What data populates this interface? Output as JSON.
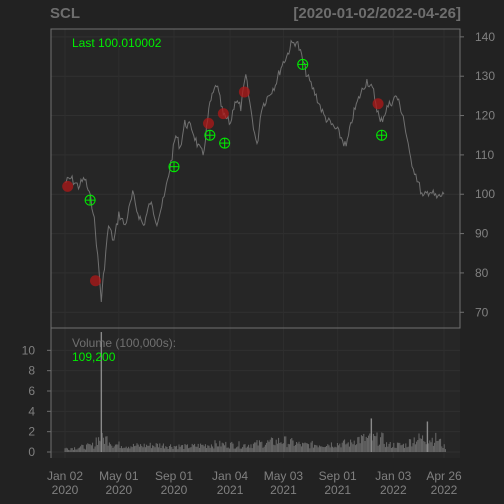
{
  "chart": {
    "symbol": "SCL",
    "date_range": "[2020-01-02/2022-04-26]",
    "last_label": "Last 100.010002",
    "volume_label": "Volume (100,000s):",
    "volume_value": "109,200"
  },
  "colors": {
    "background": "#222222",
    "panel": "#262626",
    "price_line": "#707070",
    "volume_bars": "#6b6b6b",
    "accent_green": "#00ee00",
    "marker_red": "#b01818",
    "axis_text": "#808080",
    "border": "#707070"
  },
  "chart_data": {
    "type": "line",
    "series": [
      {
        "points": [
          [
            "2020-01-02",
            103
          ],
          [
            "2020-01-15",
            104
          ],
          [
            "2020-02-01",
            102
          ],
          [
            "2020-02-15",
            104
          ],
          [
            "2020-02-25",
            100
          ],
          [
            "2020-03-05",
            96
          ],
          [
            "2020-03-12",
            88
          ],
          [
            "2020-03-18",
            80
          ],
          [
            "2020-03-23",
            73
          ],
          [
            "2020-03-30",
            82
          ],
          [
            "2020-04-08",
            92
          ],
          [
            "2020-04-20",
            88
          ],
          [
            "2020-05-01",
            95
          ],
          [
            "2020-05-15",
            92
          ],
          [
            "2020-06-01",
            100
          ],
          [
            "2020-06-10",
            96
          ],
          [
            "2020-06-25",
            92
          ],
          [
            "2020-07-10",
            98
          ],
          [
            "2020-07-25",
            93
          ],
          [
            "2020-08-10",
            99
          ],
          [
            "2020-08-25",
            108
          ],
          [
            "2020-09-05",
            115
          ],
          [
            "2020-09-15",
            112
          ],
          [
            "2020-09-25",
            118
          ],
          [
            "2020-10-10",
            117
          ],
          [
            "2020-10-25",
            112
          ],
          [
            "2020-11-05",
            110
          ],
          [
            "2020-11-20",
            123
          ],
          [
            "2020-12-05",
            128
          ],
          [
            "2020-12-20",
            120
          ],
          [
            "2021-01-05",
            118
          ],
          [
            "2021-01-15",
            124
          ],
          [
            "2021-01-28",
            122
          ],
          [
            "2021-02-08",
            130
          ],
          [
            "2021-02-20",
            121
          ],
          [
            "2021-03-05",
            112
          ],
          [
            "2021-03-15",
            122
          ],
          [
            "2021-03-30",
            125
          ],
          [
            "2021-04-15",
            128
          ],
          [
            "2021-04-30",
            133
          ],
          [
            "2021-05-10",
            135
          ],
          [
            "2021-05-20",
            138
          ],
          [
            "2021-06-01",
            139
          ],
          [
            "2021-06-10",
            136
          ],
          [
            "2021-06-25",
            130
          ],
          [
            "2021-07-15",
            125
          ],
          [
            "2021-08-01",
            120
          ],
          [
            "2021-08-15",
            118
          ],
          [
            "2021-09-01",
            116
          ],
          [
            "2021-09-20",
            112
          ],
          [
            "2021-10-05",
            120
          ],
          [
            "2021-10-20",
            125
          ],
          [
            "2021-11-05",
            129
          ],
          [
            "2021-11-20",
            126
          ],
          [
            "2021-12-05",
            118
          ],
          [
            "2021-12-20",
            122
          ],
          [
            "2022-01-10",
            125
          ],
          [
            "2022-01-25",
            120
          ],
          [
            "2022-02-08",
            110
          ],
          [
            "2022-02-25",
            104
          ],
          [
            "2022-03-10",
            99
          ],
          [
            "2022-03-25",
            101
          ],
          [
            "2022-04-10",
            99
          ],
          [
            "2022-04-26",
            100.01
          ]
        ]
      }
    ],
    "green_markers": [
      [
        "2020-02-27",
        98.5
      ],
      [
        "2020-09-01",
        107
      ],
      [
        "2020-11-20",
        115
      ],
      [
        "2020-12-23",
        113
      ],
      [
        "2021-06-15",
        133
      ],
      [
        "2021-12-08",
        115
      ]
    ],
    "red_markers": [
      [
        "2020-01-08",
        102
      ],
      [
        "2020-03-10",
        78
      ],
      [
        "2020-11-17",
        118
      ],
      [
        "2020-12-20",
        120.5
      ],
      [
        "2021-02-05",
        126
      ],
      [
        "2021-11-30",
        123
      ]
    ],
    "volume": [
      [
        "2020-01-02",
        0.4
      ],
      [
        "2020-02-15",
        0.6
      ],
      [
        "2020-03-10",
        0.8
      ],
      [
        "2020-03-23",
        11.8
      ],
      [
        "2020-04-15",
        0.9
      ],
      [
        "2020-06-01",
        0.7
      ],
      [
        "2020-08-01",
        0.8
      ],
      [
        "2020-10-01",
        0.6
      ],
      [
        "2020-12-01",
        0.9
      ],
      [
        "2021-02-01",
        0.8
      ],
      [
        "2021-03-20",
        1.0
      ],
      [
        "2021-05-01",
        1.3
      ],
      [
        "2021-06-15",
        0.8
      ],
      [
        "2021-08-01",
        0.9
      ],
      [
        "2021-10-01",
        1.0
      ],
      [
        "2021-11-15",
        3.3
      ],
      [
        "2021-12-20",
        0.8
      ],
      [
        "2022-02-01",
        0.8
      ],
      [
        "2022-03-20",
        3.0
      ],
      [
        "2022-04-26",
        0.6
      ]
    ],
    "price_ticks": [
      140,
      130,
      120,
      110,
      100,
      90,
      80,
      70
    ],
    "price_ylim": [
      66,
      142
    ],
    "volume_ticks": [
      10,
      8,
      6,
      4,
      2,
      0
    ],
    "volume_ylim": [
      0,
      12
    ],
    "x_ticks": [
      {
        "date": "2020-01-02",
        "label1": "Jan 02",
        "label2": "2020"
      },
      {
        "date": "2020-05-01",
        "label1": "May 01",
        "label2": "2020"
      },
      {
        "date": "2020-09-01",
        "label1": "Sep 01",
        "label2": "2020"
      },
      {
        "date": "2021-01-04",
        "label1": "Jan 04",
        "label2": "2021"
      },
      {
        "date": "2021-05-03",
        "label1": "May 03",
        "label2": "2021"
      },
      {
        "date": "2021-09-01",
        "label1": "Sep 01",
        "label2": "2021"
      },
      {
        "date": "2022-01-03",
        "label1": "Jan 03",
        "label2": "2022"
      },
      {
        "date": "2022-04-26",
        "label1": "Apr 26",
        "label2": "2022"
      }
    ],
    "x_range": [
      "2020-01-02",
      "2022-04-26"
    ],
    "grid": true
  }
}
